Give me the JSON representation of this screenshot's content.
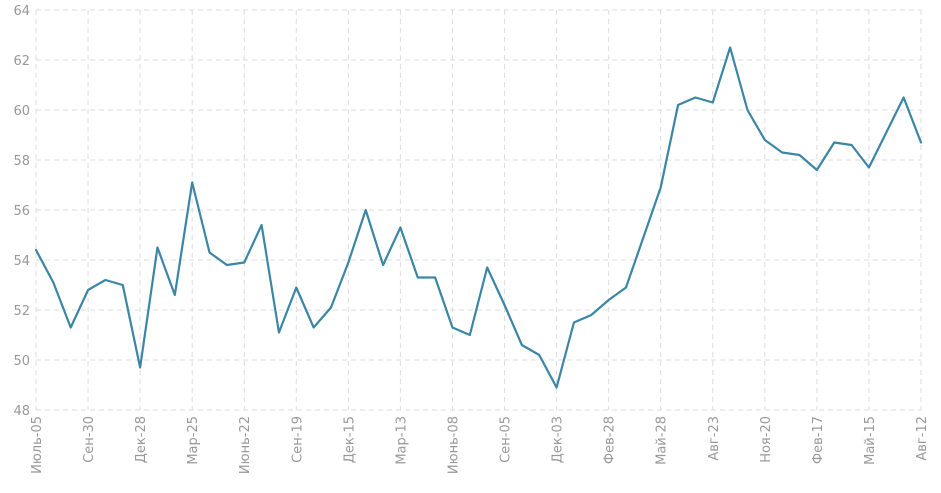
{
  "chart_data": {
    "type": "line",
    "title": "",
    "xlabel": "",
    "ylabel": "",
    "ylim": [
      48,
      64
    ],
    "y_ticks": [
      48,
      50,
      52,
      54,
      56,
      58,
      60,
      62,
      64
    ],
    "x_tick_labels": [
      "Июль-05",
      "Сен-30",
      "Дек-28",
      "Мар-25",
      "Июнь-22",
      "Сен-19",
      "Дек-15",
      "Мар-13",
      "Июнь-08",
      "Сен-05",
      "Дек-03",
      "Фев-28",
      "Май-28",
      "Авг-23",
      "Ноя-20",
      "Фев-17",
      "Май-15",
      "Авг-12"
    ],
    "grid": true,
    "legend": "none",
    "series": [
      {
        "values": [
          54.4,
          53.1,
          51.3,
          52.8,
          53.2,
          53.0,
          49.7,
          54.5,
          52.6,
          57.1,
          54.3,
          53.8,
          53.9,
          55.4,
          51.1,
          52.9,
          51.3,
          52.1,
          53.9,
          56.0,
          53.8,
          55.3,
          53.3,
          53.3,
          51.3,
          51.0,
          53.7,
          52.2,
          50.6,
          50.2,
          48.9,
          51.5,
          51.8,
          52.4,
          52.9,
          54.9,
          56.9,
          60.2,
          60.5,
          60.3,
          62.5,
          60.0,
          58.8,
          58.3,
          58.2,
          57.6,
          58.7,
          58.6,
          57.7,
          59.1,
          60.5,
          58.7
        ]
      }
    ],
    "colors": {
      "line": "#3b86a6",
      "grid": "#dddddd",
      "tick_text": "#999999"
    }
  }
}
